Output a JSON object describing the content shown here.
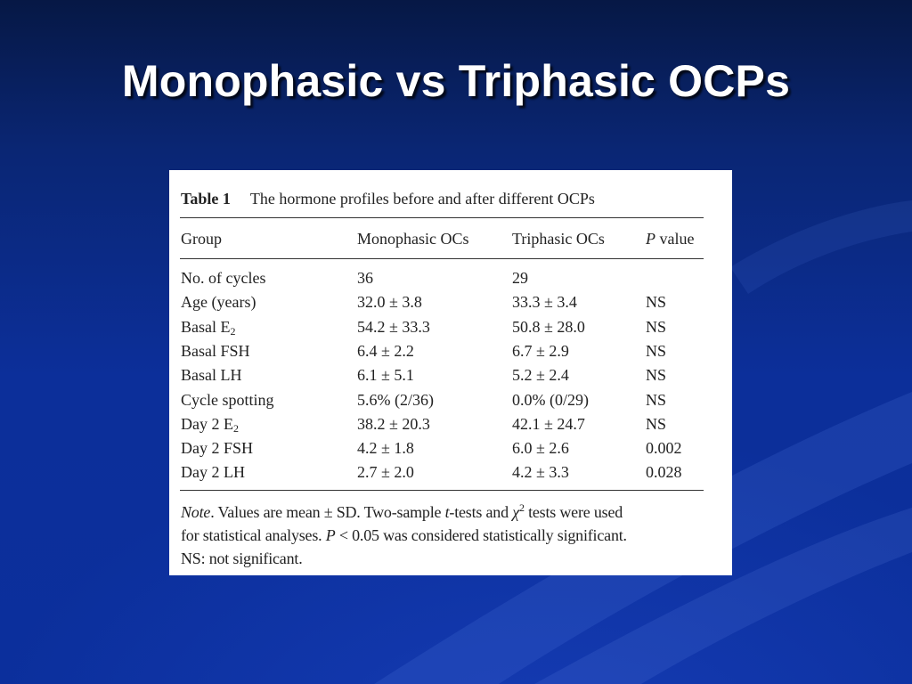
{
  "slide": {
    "title": "Monophasic vs Triphasic OCPs"
  },
  "table": {
    "label": "Table 1",
    "caption": "The hormone profiles before and after different OCPs",
    "headers": {
      "group": "Group",
      "mono": "Monophasic OCs",
      "tri": "Triphasic OCs",
      "p_italic": "P",
      "p_rest": " value"
    },
    "rows": [
      {
        "group": "No. of cycles",
        "mono": "36",
        "tri": "29",
        "p": ""
      },
      {
        "group": "Age (years)",
        "mono": "32.0 ± 3.8",
        "tri": "33.3 ± 3.4",
        "p": "NS"
      },
      {
        "group": "Basal E",
        "group_sub": "2",
        "mono": "54.2 ± 33.3",
        "tri": "50.8 ± 28.0",
        "p": "NS"
      },
      {
        "group": "Basal FSH",
        "mono": "6.4 ± 2.2",
        "tri": "6.7 ± 2.9",
        "p": "NS"
      },
      {
        "group": "Basal LH",
        "mono": "6.1 ± 5.1",
        "tri": "5.2 ± 2.4",
        "p": "NS"
      },
      {
        "group": "Cycle spotting",
        "mono": "5.6% (2/36)",
        "tri": "0.0% (0/29)",
        "p": "NS"
      },
      {
        "group": "Day 2 E",
        "group_sub": "2",
        "mono": "38.2 ± 20.3",
        "tri": "42.1 ± 24.7",
        "p": "NS"
      },
      {
        "group": "Day 2 FSH",
        "mono": "4.2 ± 1.8",
        "tri": "6.0 ± 2.6",
        "p": "0.002"
      },
      {
        "group": "Day 2 LH",
        "mono": "2.7 ± 2.0",
        "tri": "4.2 ± 3.3",
        "p": "0.028"
      }
    ],
    "note": {
      "label": "Note",
      "p1": ". Values are mean ± SD. Two-sample ",
      "t": "t",
      "p2": "-tests and ",
      "chi": "χ",
      "chi_sup": "2",
      "p3": " tests were used",
      "p4": "for statistical analyses. ",
      "P": "P",
      "p5": " < 0.05 was considered statistically significant.",
      "p6": "NS: not significant."
    }
  },
  "colors": {
    "background": "#0b2f9c",
    "title": "#ffffff",
    "table_bg": "#ffffff"
  }
}
